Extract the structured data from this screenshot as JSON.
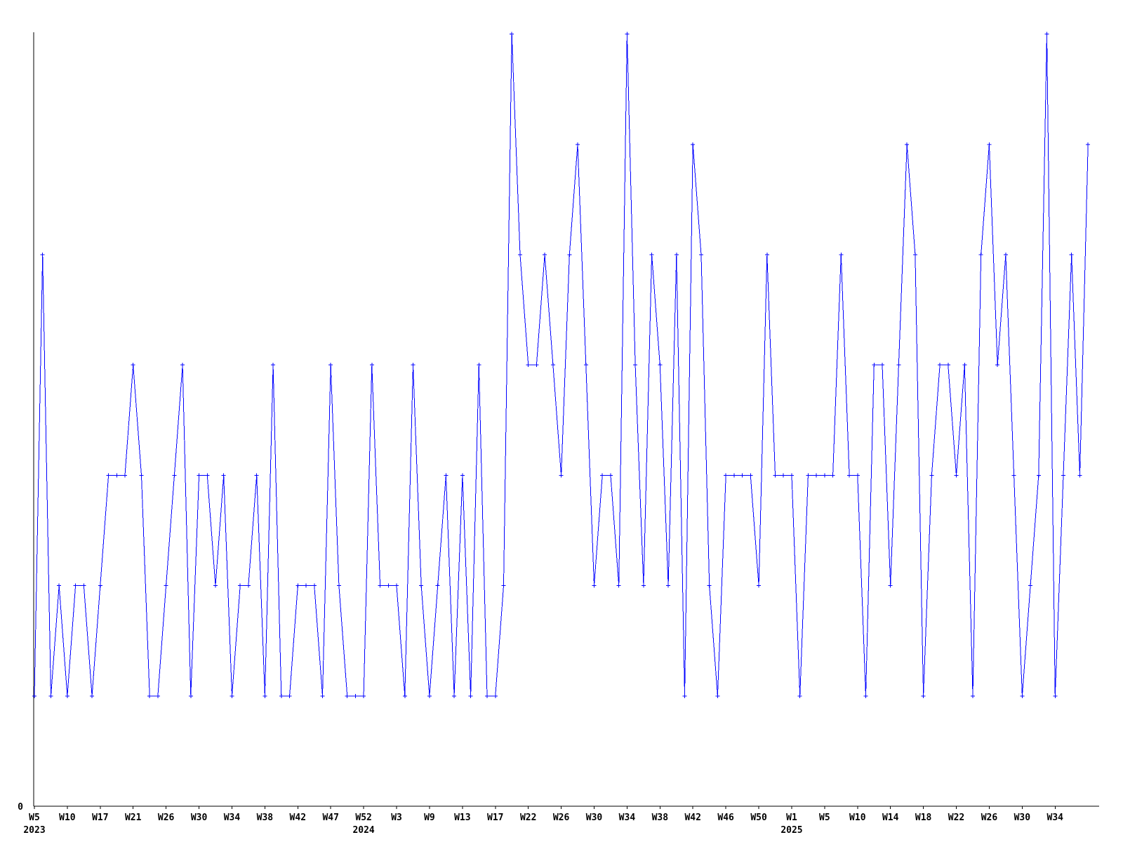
{
  "chart_data": {
    "type": "line",
    "title": "",
    "legend_position": "none",
    "grid": false,
    "marker": "plus",
    "colors": {
      "line": "#0000ff",
      "axis": "#000000",
      "background": "#ffffff",
      "text": "#000000"
    },
    "y_axis": {
      "min_label": "0",
      "min": 0,
      "max": 7,
      "only_label_shown": "0"
    },
    "x_axis": {
      "tick_every_n_points": 4,
      "tick_labels": [
        "W5",
        "W10",
        "W17",
        "W21",
        "W26",
        "W30",
        "W34",
        "W38",
        "W42",
        "W47",
        "W52",
        "W3",
        "W9",
        "W13",
        "W17",
        "W22",
        "W26",
        "W30",
        "W34",
        "W38",
        "W42",
        "W46",
        "W50",
        "W1",
        "W5",
        "W10",
        "W14",
        "W18",
        "W22",
        "W26",
        "W30",
        "W34"
      ],
      "year_labels": [
        {
          "tick_index": 0,
          "label": "2023"
        },
        {
          "tick_index": 10,
          "label": "2024"
        },
        {
          "tick_index": 23,
          "label": "2025"
        }
      ]
    },
    "values": [
      1,
      5,
      1,
      2,
      1,
      2,
      2,
      1,
      2,
      3,
      3,
      3,
      4,
      3,
      1,
      1,
      2,
      3,
      4,
      1,
      3,
      3,
      2,
      3,
      1,
      2,
      2,
      3,
      1,
      4,
      1,
      1,
      2,
      2,
      2,
      1,
      4,
      2,
      1,
      1,
      1,
      4,
      2,
      2,
      2,
      1,
      4,
      2,
      1,
      2,
      3,
      1,
      3,
      1,
      4,
      1,
      1,
      2,
      7,
      5,
      4,
      4,
      5,
      4,
      3,
      5,
      6,
      4,
      2,
      3,
      3,
      2,
      7,
      4,
      2,
      5,
      4,
      2,
      5,
      1,
      6,
      5,
      2,
      1,
      3,
      3,
      3,
      3,
      2,
      5,
      3,
      3,
      3,
      1,
      3,
      3,
      3,
      3,
      5,
      3,
      3,
      1,
      4,
      4,
      2,
      4,
      6,
      5,
      1,
      3,
      4,
      4,
      3,
      4,
      1,
      5,
      6,
      4,
      5,
      3,
      1,
      2,
      3,
      7,
      1,
      3,
      5,
      3,
      6
    ]
  }
}
